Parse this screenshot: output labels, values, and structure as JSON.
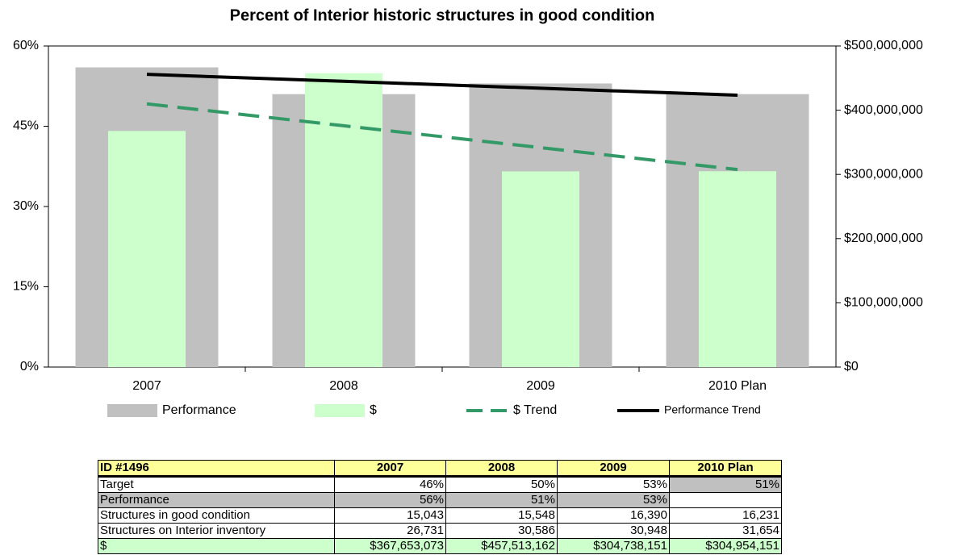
{
  "chart_data": {
    "type": "bar",
    "title": "Percent of Interior historic structures in good condition",
    "categories": [
      "2007",
      "2008",
      "2009",
      "2010 Plan"
    ],
    "series": [
      {
        "name": "Performance",
        "type": "bar",
        "color": "#c0c0c0",
        "values": [
          56,
          51,
          53,
          51
        ]
      },
      {
        "name": "$",
        "type": "bar",
        "color": "#ccffcc",
        "axis": "y2",
        "values": [
          367653073,
          457513162,
          304738151,
          304954151
        ]
      },
      {
        "name": "$ Trend",
        "type": "line",
        "dashed": true,
        "color": "#339966",
        "axis": "y2",
        "values": [
          409840000,
          375750000,
          341660000,
          307580000
        ]
      },
      {
        "name": "Performance Trend",
        "type": "line",
        "dashed": false,
        "color": "#000000",
        "values": [
          54.7,
          53.4,
          52.1,
          50.8
        ]
      }
    ],
    "ylim": [
      0,
      60
    ],
    "yticks": [
      {
        "value": 0,
        "label": "0%"
      },
      {
        "value": 15,
        "label": "15%"
      },
      {
        "value": 30,
        "label": "30%"
      },
      {
        "value": 45,
        "label": "45%"
      },
      {
        "value": 60,
        "label": "60%"
      }
    ],
    "y2lim": [
      0,
      500000000
    ],
    "y2ticks": [
      {
        "value": 0,
        "label": "$0"
      },
      {
        "value": 100000000,
        "label": "$100,000,000"
      },
      {
        "value": 200000000,
        "label": "$200,000,000"
      },
      {
        "value": 300000000,
        "label": "$300,000,000"
      },
      {
        "value": 400000000,
        "label": "$400,000,000"
      },
      {
        "value": 500000000,
        "label": "$500,000,000"
      }
    ],
    "grid": false
  },
  "table": {
    "header": [
      "ID #1496",
      "2007",
      "2008",
      "2009",
      "2010 Plan"
    ],
    "rows": [
      [
        "Target",
        "46%",
        "50%",
        "53%",
        "51%"
      ],
      [
        "Performance",
        "56%",
        "51%",
        "53%",
        null
      ],
      [
        "Structures in good condition",
        "15,043",
        "15,548",
        "16,390",
        "16,231"
      ],
      [
        "Structures on Interior inventory",
        "26,731",
        "30,586",
        "30,948",
        "31,654"
      ],
      [
        "$",
        "$367,653,073",
        "$457,513,162",
        "$304,738,151",
        "$304,954,151"
      ]
    ]
  }
}
